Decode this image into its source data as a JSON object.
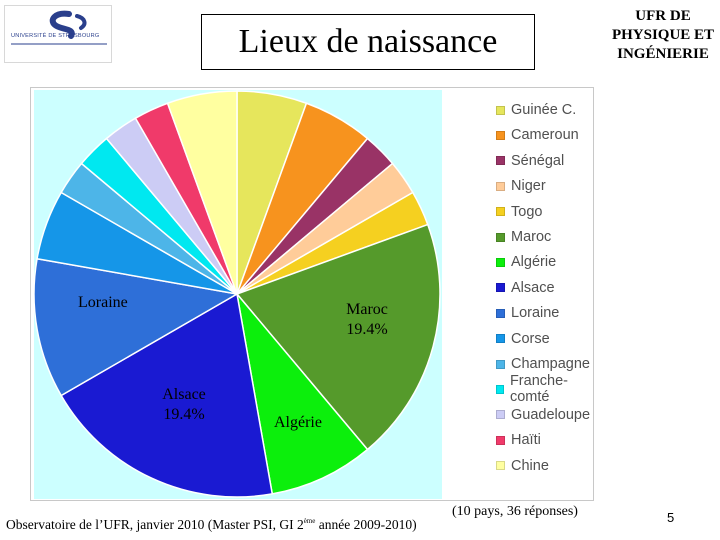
{
  "logo": {
    "text": "UNIVERSITÉ DE STRASBOURG"
  },
  "header": {
    "title": "Lieux de naissance",
    "ufr_text": "UFR DE PHYSIQUE ET INGÉNIERIE"
  },
  "chart_data": {
    "type": "pie",
    "start_angle_deg": 0,
    "direction": "clockwise",
    "categories": [
      "Guinée C.",
      "Cameroun",
      "Sénégal",
      "Niger",
      "Togo",
      "Maroc",
      "Algérie",
      "Alsace",
      "Loraine",
      "Corse",
      "Champagne",
      "Franche-comté",
      "Guadeloupe",
      "Haïti",
      "Chine"
    ],
    "values": [
      2,
      2,
      1,
      1,
      1,
      7,
      3,
      7,
      4,
      2,
      1,
      1,
      1,
      1,
      2
    ],
    "colors": [
      "#e6e65c",
      "#f7931e",
      "#993366",
      "#ffcc99",
      "#f5d020",
      "#559a2b",
      "#0cef0c",
      "#1a1ad2",
      "#2e6fd8",
      "#1596e8",
      "#4db5e8",
      "#00e8f0",
      "#ccccf5",
      "#f03a6a",
      "#ffffa0"
    ],
    "slice_labels": [
      {
        "category": "Loraine",
        "text": "Loraine"
      },
      {
        "category": "Maroc",
        "text": "Maroc 19.4%"
      },
      {
        "category": "Alsace",
        "text": "Alsace 19.4%"
      },
      {
        "category": "Algérie",
        "text": "Algérie"
      }
    ],
    "legend_position": "right"
  },
  "footer": {
    "observatory_before": "Observatoire de l’UFR, janvier 2010 (Master PSI, GI 2",
    "observatory_sup": "ème",
    "observatory_after": " année 2009-2010)",
    "responses": "(10 pays, 36 réponses)",
    "page_number": "5"
  }
}
